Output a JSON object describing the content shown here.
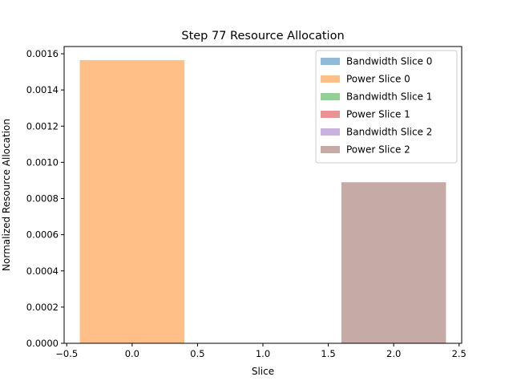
{
  "chart_data": {
    "type": "bar",
    "title": "Step 77 Resource Allocation",
    "xlabel": "Slice",
    "ylabel": "Normalized Resource Allocation",
    "xlim": [
      -0.52,
      2.52
    ],
    "ylim": [
      0,
      0.00164
    ],
    "xticks": [
      -0.5,
      0.0,
      0.5,
      1.0,
      1.5,
      2.0,
      2.5
    ],
    "xtick_labels": [
      "−0.5",
      "0.0",
      "0.5",
      "1.0",
      "1.5",
      "2.0",
      "2.5"
    ],
    "yticks": [
      0,
      0.0002,
      0.0004,
      0.0006,
      0.0008,
      0.001,
      0.0012,
      0.0014,
      0.0016
    ],
    "ytick_labels": [
      "0.0000",
      "0.0002",
      "0.0004",
      "0.0006",
      "0.0008",
      "0.0010",
      "0.0012",
      "0.0014",
      "0.0016"
    ],
    "bar_width": 0.8,
    "grid": false,
    "legend_position": "top-right",
    "series": [
      {
        "name": "Bandwidth Slice 0",
        "x": 0,
        "value": 0,
        "color": "#1f77b4"
      },
      {
        "name": "Power Slice 0",
        "x": 0,
        "value": 0.001565,
        "color": "#ff7f0e"
      },
      {
        "name": "Bandwidth Slice 1",
        "x": 1,
        "value": 0,
        "color": "#2ca02c"
      },
      {
        "name": "Power Slice 1",
        "x": 1,
        "value": 0,
        "color": "#d62728"
      },
      {
        "name": "Bandwidth Slice 2",
        "x": 2,
        "value": 0,
        "color": "#9467bd"
      },
      {
        "name": "Power Slice 2",
        "x": 2,
        "value": 0.00089,
        "color": "#8c564b"
      }
    ]
  }
}
